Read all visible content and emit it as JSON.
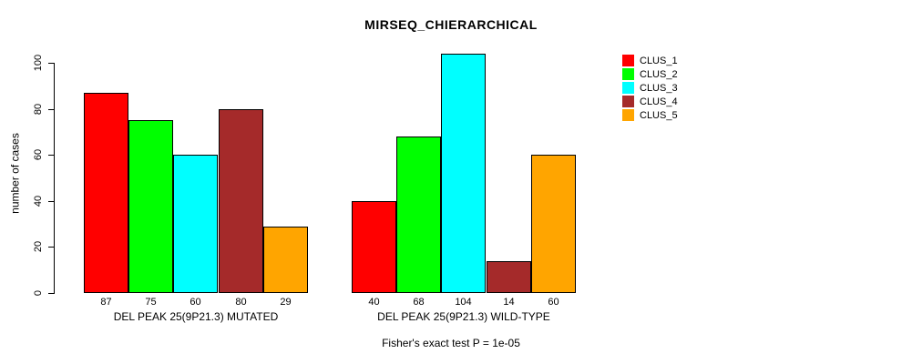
{
  "chart_data": {
    "type": "bar",
    "title": "MIRSEQ_CHIERARCHICAL",
    "ylabel": "number of cases",
    "xlabel": "",
    "ylim": [
      0,
      100
    ],
    "yticks": [
      0,
      20,
      40,
      60,
      80,
      100
    ],
    "grid": false,
    "legend_position": "top-right",
    "categories": [
      "DEL PEAK 25(9P21.3) MUTATED",
      "DEL PEAK 25(9P21.3) WILD-TYPE"
    ],
    "series": [
      {
        "name": "CLUS_1",
        "color": "#ff0000",
        "values": [
          87,
          40
        ]
      },
      {
        "name": "CLUS_2",
        "color": "#00ff00",
        "values": [
          75,
          68
        ]
      },
      {
        "name": "CLUS_3",
        "color": "#00ffff",
        "values": [
          60,
          104
        ]
      },
      {
        "name": "CLUS_4",
        "color": "#a52a2a",
        "values": [
          80,
          14
        ]
      },
      {
        "name": "CLUS_5",
        "color": "#ffa500",
        "values": [
          29,
          60
        ]
      }
    ],
    "bar_value_labels": [
      [
        87,
        75,
        60,
        80,
        29
      ],
      [
        40,
        68,
        104,
        14,
        60
      ]
    ],
    "annotation": "Fisher's exact test P = 1e-05"
  },
  "layout_colors": {
    "background": "#ffffff",
    "axis": "#000000",
    "text": "#000000"
  }
}
